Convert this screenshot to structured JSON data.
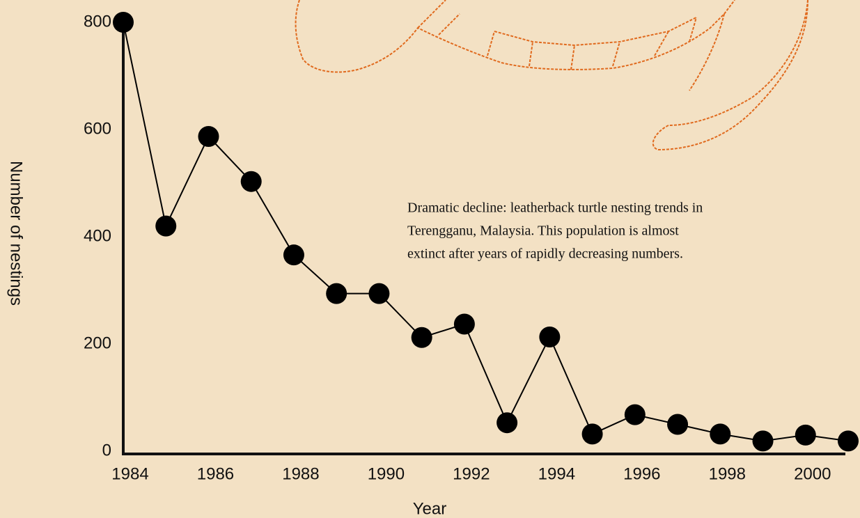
{
  "chart_data": {
    "type": "line",
    "x_label": "Year",
    "y_label": "Number of nestings",
    "annotation": [
      "Dramatic decline: leatherback turtle nesting trends in",
      "Terengganu, Malaysia.  This population is almost",
      "extinct after years of rapidly decreasing numbers."
    ],
    "x": [
      1984,
      1985,
      1986,
      1987,
      1988,
      1989,
      1990,
      1991,
      1992,
      1993,
      1994,
      1995,
      1996,
      1997,
      1998,
      1999,
      2000,
      2001
    ],
    "series": [
      {
        "color": "#000000",
        "values": [
          800,
          420,
          587,
          503,
          366,
          294,
          294,
          212,
          237,
          53,
          213,
          32,
          68,
          50,
          32,
          19,
          30,
          19
        ]
      }
    ],
    "xlim": [
      1984,
      2001
    ],
    "xticks": [
      1984,
      1986,
      1988,
      1990,
      1992,
      1994,
      1996,
      1998,
      2000
    ],
    "ylim": [
      0,
      800
    ],
    "yticks": [
      0,
      200,
      400,
      600,
      800
    ],
    "grid": false
  }
}
